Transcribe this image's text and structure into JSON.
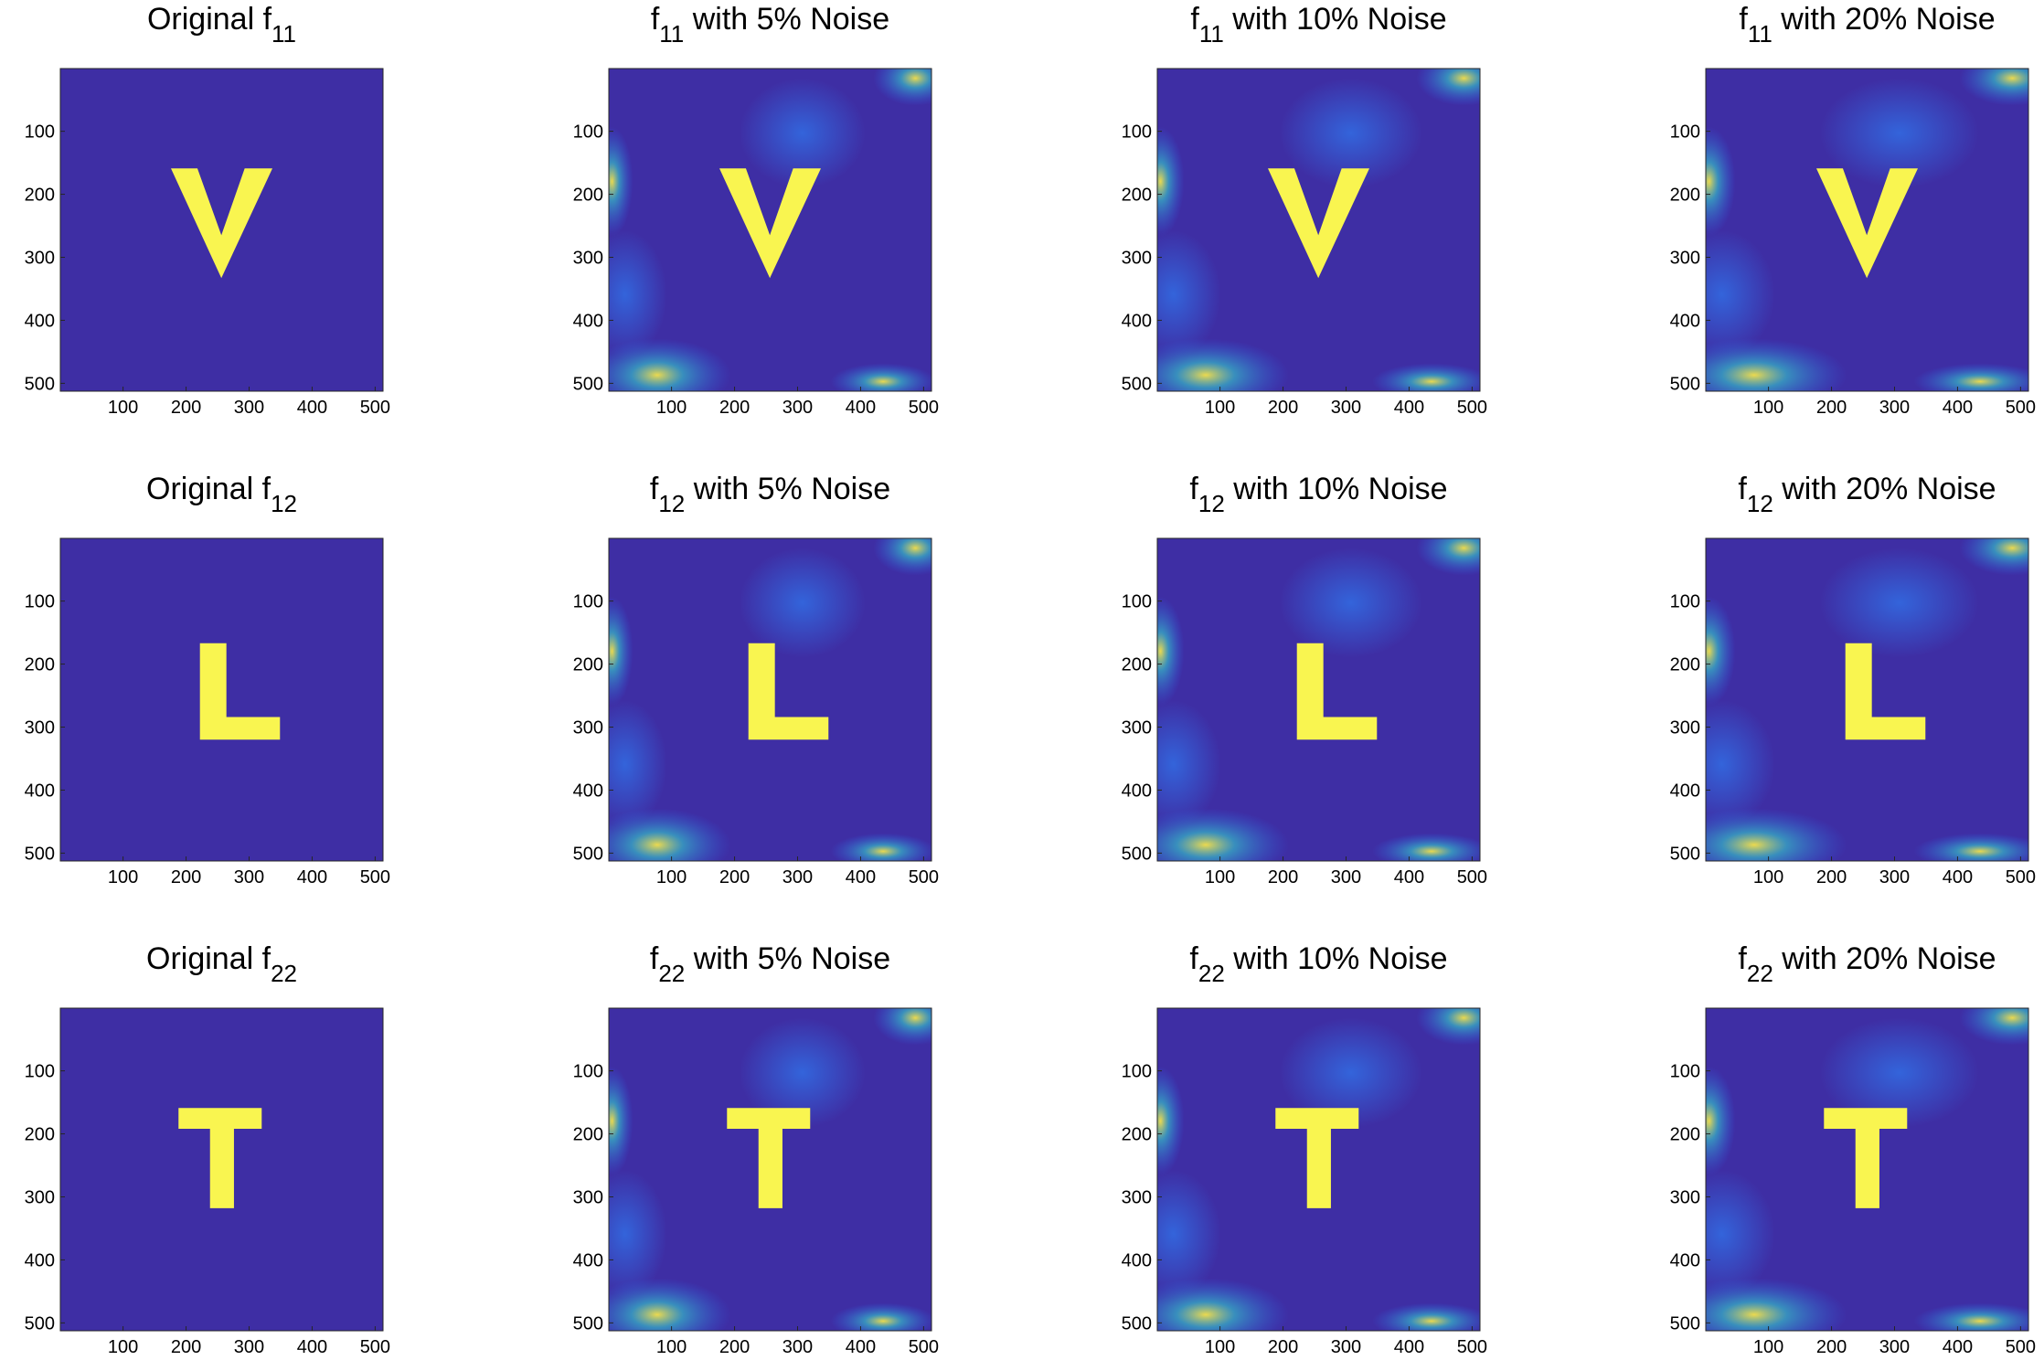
{
  "chart_data": [
    {
      "type": "image",
      "title": {
        "prefix": "Original f",
        "sub": "11"
      },
      "xlim": [
        0.5,
        512.5
      ],
      "ylim": [
        0.5,
        512.5
      ],
      "y_reversed": true,
      "xticks": [
        100,
        200,
        300,
        400,
        500
      ],
      "yticks": [
        100,
        200,
        300,
        400,
        500
      ],
      "colors": [
        "#3e2ea4",
        "#f9f550"
      ]
    },
    {
      "type": "image",
      "title": {
        "prefix": "f",
        "sub": "11",
        "suffix": " with 5% Noise"
      },
      "xlim": [
        0.5,
        512.5
      ],
      "ylim": [
        0.5,
        512.5
      ],
      "y_reversed": true,
      "xticks": [
        100,
        200,
        300,
        400,
        500
      ],
      "yticks": [
        100,
        200,
        300,
        400,
        500
      ],
      "colors": [
        "#3e2ea4",
        "#f9f550"
      ]
    },
    {
      "type": "image",
      "title": {
        "prefix": "f",
        "sub": "11",
        "suffix": " with 10% Noise"
      },
      "xlim": [
        0.5,
        512.5
      ],
      "ylim": [
        0.5,
        512.5
      ],
      "y_reversed": true,
      "xticks": [
        100,
        200,
        300,
        400,
        500
      ],
      "yticks": [
        100,
        200,
        300,
        400,
        500
      ],
      "colors": [
        "#3e2ea4",
        "#f9f550"
      ]
    },
    {
      "type": "image",
      "title": {
        "prefix": "f",
        "sub": "11",
        "suffix": " with 20% Noise"
      },
      "xlim": [
        0.5,
        512.5
      ],
      "ylim": [
        0.5,
        512.5
      ],
      "y_reversed": true,
      "xticks": [
        100,
        200,
        300,
        400,
        500
      ],
      "yticks": [
        100,
        200,
        300,
        400,
        500
      ],
      "colors": [
        "#3e2ea4",
        "#f9f550"
      ]
    },
    {
      "type": "image",
      "title": {
        "prefix": "Original f",
        "sub": "12"
      },
      "xlim": [
        0.5,
        512.5
      ],
      "ylim": [
        0.5,
        512.5
      ],
      "y_reversed": true,
      "xticks": [
        100,
        200,
        300,
        400,
        500
      ],
      "yticks": [
        100,
        200,
        300,
        400,
        500
      ],
      "colors": [
        "#3e2ea4",
        "#f9f550"
      ]
    },
    {
      "type": "image",
      "title": {
        "prefix": "f",
        "sub": "12",
        "suffix": " with 5% Noise"
      },
      "xlim": [
        0.5,
        512.5
      ],
      "ylim": [
        0.5,
        512.5
      ],
      "y_reversed": true,
      "xticks": [
        100,
        200,
        300,
        400,
        500
      ],
      "yticks": [
        100,
        200,
        300,
        400,
        500
      ],
      "colors": [
        "#3e2ea4",
        "#f9f550"
      ]
    },
    {
      "type": "image",
      "title": {
        "prefix": "f",
        "sub": "12",
        "suffix": " with 10% Noise"
      },
      "xlim": [
        0.5,
        512.5
      ],
      "ylim": [
        0.5,
        512.5
      ],
      "y_reversed": true,
      "xticks": [
        100,
        200,
        300,
        400,
        500
      ],
      "yticks": [
        100,
        200,
        300,
        400,
        500
      ],
      "colors": [
        "#3e2ea4",
        "#f9f550"
      ]
    },
    {
      "type": "image",
      "title": {
        "prefix": "f",
        "sub": "12",
        "suffix": " with 20% Noise"
      },
      "xlim": [
        0.5,
        512.5
      ],
      "ylim": [
        0.5,
        512.5
      ],
      "y_reversed": true,
      "xticks": [
        100,
        200,
        300,
        400,
        500
      ],
      "yticks": [
        100,
        200,
        300,
        400,
        500
      ],
      "colors": [
        "#3e2ea4",
        "#f9f550"
      ]
    },
    {
      "type": "image",
      "title": {
        "prefix": "Original f",
        "sub": "22"
      },
      "xlim": [
        0.5,
        512.5
      ],
      "ylim": [
        0.5,
        512.5
      ],
      "y_reversed": true,
      "xticks": [
        100,
        200,
        300,
        400,
        500
      ],
      "yticks": [
        100,
        200,
        300,
        400,
        500
      ],
      "colors": [
        "#3e2ea4",
        "#f9f550"
      ]
    },
    {
      "type": "image",
      "title": {
        "prefix": "f",
        "sub": "22",
        "suffix": " with 5% Noise"
      },
      "xlim": [
        0.5,
        512.5
      ],
      "ylim": [
        0.5,
        512.5
      ],
      "y_reversed": true,
      "xticks": [
        100,
        200,
        300,
        400,
        500
      ],
      "yticks": [
        100,
        200,
        300,
        400,
        500
      ],
      "colors": [
        "#3e2ea4",
        "#f9f550"
      ]
    },
    {
      "type": "image",
      "title": {
        "prefix": "f",
        "sub": "22",
        "suffix": " with 10% Noise"
      },
      "xlim": [
        0.5,
        512.5
      ],
      "ylim": [
        0.5,
        512.5
      ],
      "y_reversed": true,
      "xticks": [
        100,
        200,
        300,
        400,
        500
      ],
      "yticks": [
        100,
        200,
        300,
        400,
        500
      ],
      "colors": [
        "#3e2ea4",
        "#f9f550"
      ]
    },
    {
      "type": "image",
      "title": {
        "prefix": "f",
        "sub": "22",
        "suffix": " with 20% Noise"
      },
      "xlim": [
        0.5,
        512.5
      ],
      "ylim": [
        0.5,
        512.5
      ],
      "y_reversed": true,
      "xticks": [
        100,
        200,
        300,
        400,
        500
      ],
      "yticks": [
        100,
        200,
        300,
        400,
        500
      ],
      "colors": [
        "#3e2ea4",
        "#f9f550"
      ]
    }
  ]
}
